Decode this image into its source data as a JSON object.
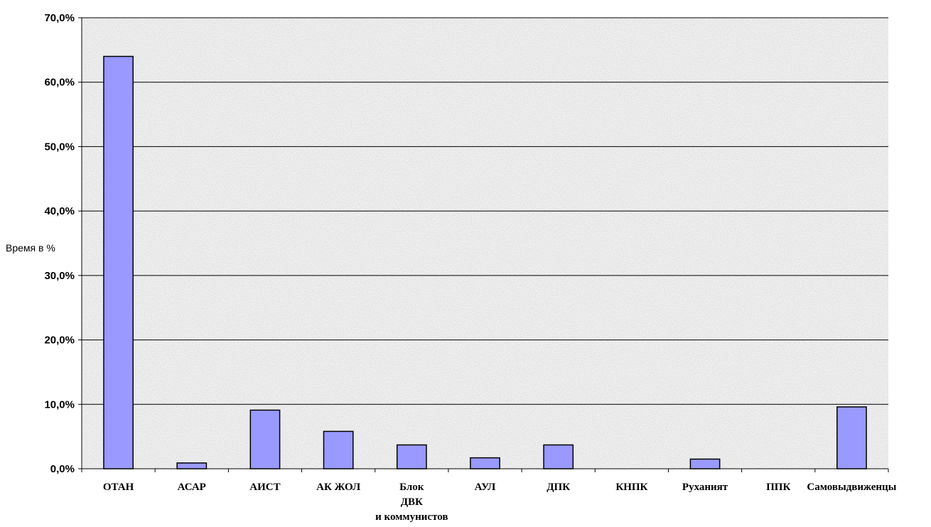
{
  "chart_data": {
    "type": "bar",
    "title": "",
    "xlabel": "",
    "ylabel": "Время в %",
    "categories": [
      "ОТАН",
      "АСАР",
      "АИСТ",
      "АК ЖОЛ",
      "Блок ДВК и коммунистов",
      "АУЛ",
      "ДПК",
      "КНПК",
      "Руханият",
      "ППК",
      "Самовыдвиженцы"
    ],
    "category_lines": [
      [
        "ОТАН"
      ],
      [
        "АСАР"
      ],
      [
        "АИСТ"
      ],
      [
        "АК ЖОЛ"
      ],
      [
        "Блок",
        "ДВК",
        "и коммунистов"
      ],
      [
        "АУЛ"
      ],
      [
        "ДПК"
      ],
      [
        "КНПК"
      ],
      [
        "Руханият"
      ],
      [
        "ППК"
      ],
      [
        "Самовыдвиженцы"
      ]
    ],
    "values": [
      64.0,
      0.9,
      9.1,
      5.8,
      3.7,
      1.7,
      3.7,
      0,
      1.5,
      0,
      9.6
    ],
    "ylim": [
      0,
      70
    ],
    "yticks": [
      0,
      10,
      20,
      30,
      40,
      50,
      60,
      70
    ],
    "ytick_labels": [
      "0,0%",
      "10,0%",
      "20,0%",
      "30,0%",
      "40,0%",
      "50,0%",
      "60,0%",
      "70,0%"
    ],
    "grid": true,
    "legend": "none",
    "colors": {
      "bar": "#9999ff",
      "bar_edge": "#000000",
      "plot_bg": "#dcdcdc",
      "grid": "#000000"
    }
  }
}
